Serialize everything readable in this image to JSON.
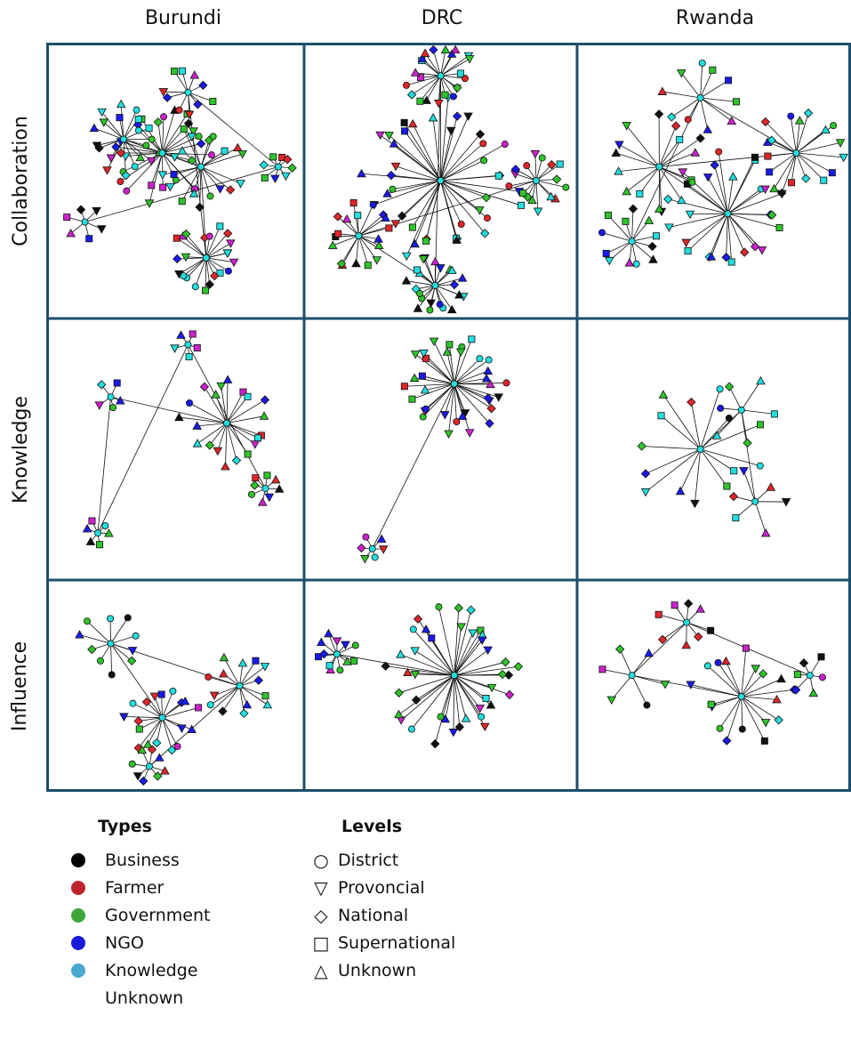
{
  "columns": [
    "Burundi",
    "DRC",
    "Rwanda"
  ],
  "rows": [
    "Collaboration",
    "Knowledge",
    "Influence"
  ],
  "types_legend": {
    "title": "Types",
    "items": [
      {
        "label": "Business",
        "color": "#000000"
      },
      {
        "label": "Farmer",
        "color": "#c0242a"
      },
      {
        "label": "Government",
        "color": "#3fa63a"
      },
      {
        "label": "NGO",
        "color": "#1a1adb"
      },
      {
        "label": "Knowledge",
        "color": "#4aa8d2"
      },
      {
        "label": "Unknown",
        "color": ""
      }
    ]
  },
  "levels_legend": {
    "title": "Levels",
    "items": [
      {
        "label": "District",
        "icon": "circle-outline"
      },
      {
        "label": "Provoncial",
        "icon": "triangle-down-outline"
      },
      {
        "label": "National",
        "icon": "diamond-outline"
      },
      {
        "label": "Supernational",
        "icon": "square-outline"
      },
      {
        "label": "Unknown",
        "icon": "triangle-up-outline"
      }
    ]
  },
  "node_colors": {
    "business": "#111111",
    "farmer": "#e0262a",
    "government": "#2ec42a",
    "ngo": "#1a1aee",
    "knowledge": "#22dede",
    "unknown": "#cc22cc"
  },
  "grid_color": "#1d4e6b"
}
